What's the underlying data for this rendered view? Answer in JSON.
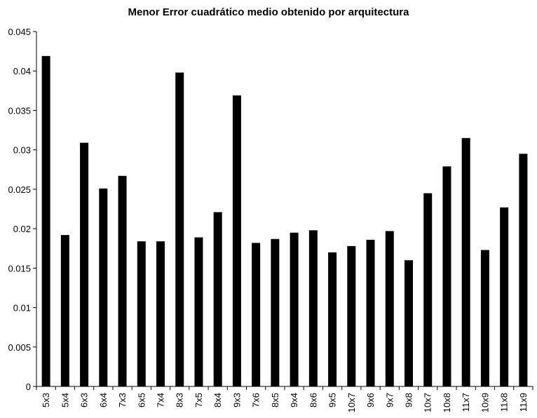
{
  "chart_data": {
    "type": "bar",
    "title": "Menor Error cuadrático medio obtenido por arquitectura",
    "xlabel": "",
    "ylabel": "",
    "categories": [
      "5x3",
      "5x4",
      "6x3",
      "6x4",
      "7x3",
      "6x5",
      "7x4",
      "8x3",
      "7x5",
      "8x4",
      "9x3",
      "7x6",
      "8x5",
      "9x4",
      "8x6",
      "9x5",
      "10x7",
      "9x6",
      "9x7",
      "9x8",
      "10x7",
      "10x8",
      "11x7",
      "10x9",
      "11x8",
      "11x9"
    ],
    "values": [
      0.0419,
      0.0192,
      0.0309,
      0.0251,
      0.0267,
      0.0184,
      0.0184,
      0.0398,
      0.0189,
      0.0221,
      0.0369,
      0.0182,
      0.0187,
      0.0195,
      0.0198,
      0.017,
      0.0178,
      0.0186,
      0.0197,
      0.016,
      0.0245,
      0.0279,
      0.0315,
      0.0173,
      0.0227,
      0.0295
    ],
    "ylim": [
      0,
      0.045
    ],
    "yticks": [
      0,
      0.005,
      0.01,
      0.015,
      0.02,
      0.025,
      0.03,
      0.035,
      0.04,
      0.045
    ],
    "ytick_labels": [
      "0",
      "0.005",
      "0.01",
      "0.015",
      "0.02",
      "0.025",
      "0.03",
      "0.035",
      "0.04",
      "0.045"
    ],
    "grid": false,
    "legend": "none",
    "bar_color": "#000000",
    "axis_color": "#000000"
  }
}
